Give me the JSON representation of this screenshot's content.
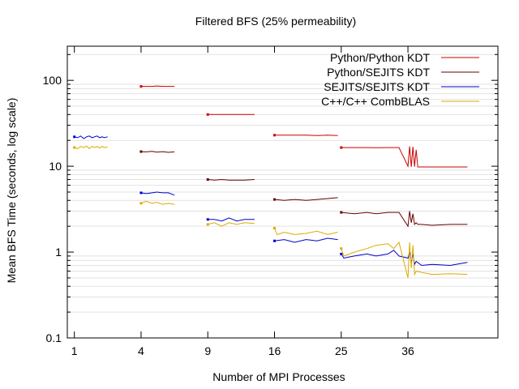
{
  "chart_data": {
    "type": "line",
    "title": "Filtered BFS (25% permeability)",
    "xlabel": "Number of MPI Processes",
    "ylabel": "Mean BFS Time (seconds, log scale)",
    "y_scale": "log",
    "x_scale": "sqrt",
    "ylim": [
      0.1,
      250
    ],
    "xlim": [
      0.8,
      54
    ],
    "grid": "y-minor",
    "legend_position": "top-right",
    "x_ticks": [
      {
        "value": 1,
        "label": "1"
      },
      {
        "value": 4,
        "label": "4"
      },
      {
        "value": 9,
        "label": "9"
      },
      {
        "value": 16,
        "label": "16"
      },
      {
        "value": 25,
        "label": "25"
      },
      {
        "value": 36,
        "label": "36"
      }
    ],
    "y_ticks": [
      {
        "value": 0.1,
        "label": "0.1"
      },
      {
        "value": 1,
        "label": "1"
      },
      {
        "value": 10,
        "label": "10"
      },
      {
        "value": 100,
        "label": "100"
      }
    ],
    "series": [
      {
        "name": "Python/Python KDT",
        "color": "#cc0000",
        "segments": [
          {
            "x": [
              4,
              4.3,
              4.7,
              5.0,
              5.4,
              5.8,
              6.25
            ],
            "y": [
              85,
              85,
              85,
              86,
              85,
              85,
              85
            ]
          },
          {
            "x": [
              9,
              9.6,
              10.3,
              11.0,
              11.8,
              12.6,
              13.7
            ],
            "y": [
              40,
              40,
              40,
              40,
              40,
              40,
              40
            ]
          },
          {
            "x": [
              16,
              17.2,
              18.5,
              20.0,
              21.5,
              23.0,
              24.5
            ],
            "y": [
              23,
              23,
              23,
              23,
              22.8,
              23,
              22.8
            ]
          },
          {
            "x": [
              25,
              27,
              29,
              30.5,
              32.5,
              34.4,
              36,
              36.3,
              36.6,
              36.9,
              37.2,
              37.5,
              37.8,
              38.1,
              38.4,
              40.5,
              44,
              47.5
            ],
            "y": [
              16.5,
              16.5,
              16.5,
              16.4,
              16.5,
              16.5,
              10,
              17,
              9.8,
              16.8,
              9.9,
              15.5,
              9.8,
              9.8,
              9.8,
              9.8,
              9.8,
              9.8
            ]
          }
        ]
      },
      {
        "name": "Python/SEJITS KDT",
        "color": "#660000",
        "segments": [
          {
            "x": [
              4,
              4.3,
              4.7,
              5.0,
              5.4,
              5.8,
              6.25
            ],
            "y": [
              14.8,
              14.7,
              14.9,
              14.6,
              14.8,
              14.5,
              14.7
            ]
          },
          {
            "x": [
              9,
              9.6,
              10.3,
              11.0,
              11.8,
              12.6,
              13.7
            ],
            "y": [
              7.0,
              6.9,
              7.0,
              6.9,
              6.9,
              6.9,
              7.0
            ]
          },
          {
            "x": [
              16,
              17.2,
              18.5,
              20.0,
              21.5,
              23.0,
              24.5
            ],
            "y": [
              4.1,
              4.0,
              4.1,
              4.0,
              4.1,
              4.2,
              4.3
            ]
          },
          {
            "x": [
              25,
              27,
              29,
              30.5,
              32.5,
              34.4,
              36,
              36.3,
              36.6,
              36.9,
              37.2,
              37.5,
              37.8,
              38.1,
              38.4,
              40.5,
              44,
              47.5
            ],
            "y": [
              2.9,
              2.8,
              2.9,
              2.8,
              2.9,
              2.9,
              2.0,
              3.0,
              2.2,
              2.8,
              2.1,
              2.2,
              2.1,
              2.1,
              2.1,
              2.05,
              2.1,
              2.1
            ]
          }
        ]
      },
      {
        "name": "SEJITS/SEJITS KDT",
        "color": "#0000cc",
        "segments": [
          {
            "x": [
              1,
              1.1,
              1.2,
              1.3,
              1.4,
              1.5,
              1.6,
              1.7,
              1.8,
              1.9,
              2.0,
              2.1,
              2.25
            ],
            "y": [
              22,
              21.5,
              22.5,
              21,
              22,
              22.5,
              21.5,
              22,
              22.5,
              21.5,
              22,
              21.5,
              22
            ]
          },
          {
            "x": [
              4,
              4.3,
              4.7,
              5.0,
              5.4,
              5.8,
              6.25
            ],
            "y": [
              4.9,
              4.8,
              4.9,
              5.0,
              4.9,
              4.9,
              4.6
            ]
          },
          {
            "x": [
              9,
              9.6,
              10.3,
              11.0,
              11.8,
              12.6,
              13.7
            ],
            "y": [
              2.4,
              2.4,
              2.3,
              2.5,
              2.3,
              2.4,
              2.4
            ]
          },
          {
            "x": [
              16,
              17.2,
              18.5,
              20.0,
              21.5,
              23.0,
              24.5
            ],
            "y": [
              1.35,
              1.4,
              1.3,
              1.4,
              1.35,
              1.45,
              1.4
            ]
          },
          {
            "x": [
              25,
              25.4,
              27,
              29,
              30.5,
              32.5,
              33.5,
              34.4,
              36,
              36.3,
              36.6,
              36.9,
              37.2,
              37.5,
              38.5,
              40.5,
              44,
              47.5
            ],
            "y": [
              0.95,
              0.85,
              0.9,
              0.95,
              0.9,
              0.95,
              1.05,
              0.9,
              0.85,
              1.0,
              0.75,
              0.95,
              0.72,
              0.78,
              0.7,
              0.72,
              0.7,
              0.76
            ]
          }
        ]
      },
      {
        "name": "C++/C++ CombBLAS",
        "color": "#ddaa00",
        "segments": [
          {
            "x": [
              1,
              1.1,
              1.2,
              1.3,
              1.4,
              1.5,
              1.6,
              1.7,
              1.8,
              1.9,
              2.0,
              2.1,
              2.25
            ],
            "y": [
              16.5,
              16.0,
              17.0,
              16.5,
              17.2,
              16.0,
              17.0,
              16.5,
              17.0,
              16.3,
              17.0,
              16.5,
              16.8
            ]
          },
          {
            "x": [
              4,
              4.3,
              4.7,
              5.0,
              5.4,
              5.8,
              6.25
            ],
            "y": [
              3.7,
              3.9,
              3.7,
              3.8,
              3.6,
              3.7,
              3.6
            ]
          },
          {
            "x": [
              9,
              9.6,
              10.3,
              11.0,
              11.8,
              12.6,
              13.7
            ],
            "y": [
              2.1,
              2.2,
              2.0,
              2.2,
              2.1,
              2.2,
              2.15
            ]
          },
          {
            "x": [
              16,
              16.3,
              17.2,
              18.5,
              20.0,
              21.5,
              23.0,
              24.5
            ],
            "y": [
              1.9,
              1.6,
              1.7,
              1.6,
              1.65,
              1.75,
              1.6,
              1.7
            ]
          },
          {
            "x": [
              25,
              25.4,
              27,
              29,
              30.5,
              32.5,
              33.5,
              34.4,
              36,
              36.3,
              36.6,
              36.9,
              37.2,
              37.5,
              38.5,
              40.5,
              44,
              47.5
            ],
            "y": [
              1.1,
              0.9,
              1.0,
              1.1,
              1.2,
              1.25,
              1.1,
              1.3,
              0.5,
              1.3,
              0.65,
              1.2,
              0.55,
              0.6,
              0.58,
              0.55,
              0.56,
              0.55
            ]
          }
        ]
      }
    ]
  }
}
